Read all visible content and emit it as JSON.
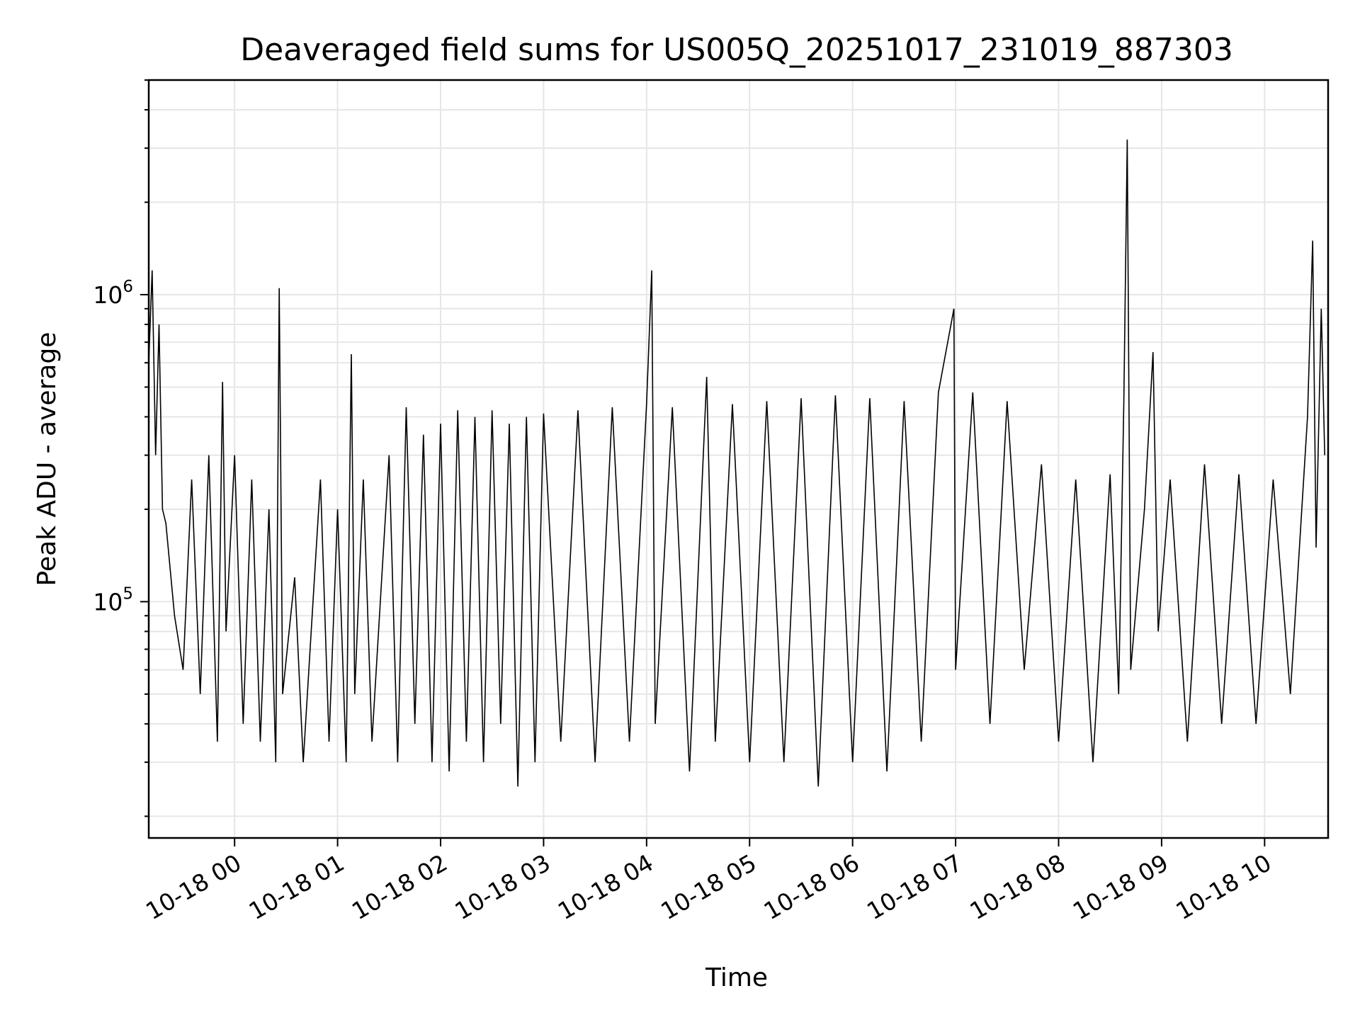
{
  "chart_data": {
    "type": "line",
    "title": "Deaveraged field sums for US005Q_20251017_231019_887303",
    "xlabel": "Time",
    "ylabel": "Peak ADU - average",
    "yscale": "log",
    "ylim": [
      17000,
      5000000
    ],
    "xlim": [
      "2025-10-17 23:10",
      "2025-10-18 10:37"
    ],
    "grid": true,
    "line_color": "#000000",
    "x_ticks": [
      {
        "t": "2025-10-18 00:00",
        "label": "10-18 00"
      },
      {
        "t": "2025-10-18 01:00",
        "label": "10-18 01"
      },
      {
        "t": "2025-10-18 02:00",
        "label": "10-18 02"
      },
      {
        "t": "2025-10-18 03:00",
        "label": "10-18 03"
      },
      {
        "t": "2025-10-18 04:00",
        "label": "10-18 04"
      },
      {
        "t": "2025-10-18 05:00",
        "label": "10-18 05"
      },
      {
        "t": "2025-10-18 06:00",
        "label": "10-18 06"
      },
      {
        "t": "2025-10-18 07:00",
        "label": "10-18 07"
      },
      {
        "t": "2025-10-18 08:00",
        "label": "10-18 08"
      },
      {
        "t": "2025-10-18 09:00",
        "label": "10-18 09"
      },
      {
        "t": "2025-10-18 10:00",
        "label": "10-18 10"
      }
    ],
    "y_ticks": [
      {
        "value": 100000,
        "base": "10",
        "exp": "5"
      },
      {
        "value": 1000000,
        "base": "10",
        "exp": "6"
      }
    ],
    "series": [
      {
        "points": [
          [
            "2025-10-17 23:10",
            600000
          ],
          [
            "2025-10-17 23:12",
            1200000
          ],
          [
            "2025-10-17 23:14",
            300000
          ],
          [
            "2025-10-17 23:16",
            800000
          ],
          [
            "2025-10-17 23:18",
            200000
          ],
          [
            "2025-10-17 23:20",
            180000
          ],
          [
            "2025-10-17 23:25",
            90000
          ],
          [
            "2025-10-17 23:30",
            60000
          ],
          [
            "2025-10-17 23:35",
            250000
          ],
          [
            "2025-10-17 23:40",
            50000
          ],
          [
            "2025-10-17 23:45",
            300000
          ],
          [
            "2025-10-17 23:50",
            35000
          ],
          [
            "2025-10-17 23:53",
            520000
          ],
          [
            "2025-10-17 23:55",
            80000
          ],
          [
            "2025-10-18 00:00",
            300000
          ],
          [
            "2025-10-18 00:05",
            40000
          ],
          [
            "2025-10-18 00:10",
            250000
          ],
          [
            "2025-10-18 00:15",
            35000
          ],
          [
            "2025-10-18 00:20",
            200000
          ],
          [
            "2025-10-18 00:24",
            30000
          ],
          [
            "2025-10-18 00:26",
            1050000
          ],
          [
            "2025-10-18 00:28",
            50000
          ],
          [
            "2025-10-18 00:35",
            120000
          ],
          [
            "2025-10-18 00:40",
            30000
          ],
          [
            "2025-10-18 00:50",
            250000
          ],
          [
            "2025-10-18 00:55",
            35000
          ],
          [
            "2025-10-18 01:00",
            200000
          ],
          [
            "2025-10-18 01:05",
            30000
          ],
          [
            "2025-10-18 01:08",
            640000
          ],
          [
            "2025-10-18 01:10",
            50000
          ],
          [
            "2025-10-18 01:15",
            250000
          ],
          [
            "2025-10-18 01:20",
            35000
          ],
          [
            "2025-10-18 01:30",
            300000
          ],
          [
            "2025-10-18 01:35",
            30000
          ],
          [
            "2025-10-18 01:40",
            430000
          ],
          [
            "2025-10-18 01:45",
            40000
          ],
          [
            "2025-10-18 01:50",
            350000
          ],
          [
            "2025-10-18 01:55",
            30000
          ],
          [
            "2025-10-18 02:00",
            380000
          ],
          [
            "2025-10-18 02:05",
            28000
          ],
          [
            "2025-10-18 02:10",
            420000
          ],
          [
            "2025-10-18 02:15",
            35000
          ],
          [
            "2025-10-18 02:20",
            400000
          ],
          [
            "2025-10-18 02:25",
            30000
          ],
          [
            "2025-10-18 02:30",
            420000
          ],
          [
            "2025-10-18 02:35",
            40000
          ],
          [
            "2025-10-18 02:40",
            380000
          ],
          [
            "2025-10-18 02:45",
            25000
          ],
          [
            "2025-10-18 02:50",
            400000
          ],
          [
            "2025-10-18 02:55",
            30000
          ],
          [
            "2025-10-18 03:00",
            410000
          ],
          [
            "2025-10-18 03:10",
            35000
          ],
          [
            "2025-10-18 03:20",
            420000
          ],
          [
            "2025-10-18 03:30",
            30000
          ],
          [
            "2025-10-18 03:40",
            430000
          ],
          [
            "2025-10-18 03:50",
            35000
          ],
          [
            "2025-10-18 04:00",
            440000
          ],
          [
            "2025-10-18 04:03",
            1200000
          ],
          [
            "2025-10-18 04:05",
            40000
          ],
          [
            "2025-10-18 04:15",
            430000
          ],
          [
            "2025-10-18 04:25",
            28000
          ],
          [
            "2025-10-18 04:35",
            540000
          ],
          [
            "2025-10-18 04:40",
            35000
          ],
          [
            "2025-10-18 04:50",
            440000
          ],
          [
            "2025-10-18 05:00",
            30000
          ],
          [
            "2025-10-18 05:10",
            450000
          ],
          [
            "2025-10-18 05:20",
            30000
          ],
          [
            "2025-10-18 05:30",
            460000
          ],
          [
            "2025-10-18 05:40",
            25000
          ],
          [
            "2025-10-18 05:50",
            470000
          ],
          [
            "2025-10-18 06:00",
            30000
          ],
          [
            "2025-10-18 06:10",
            460000
          ],
          [
            "2025-10-18 06:20",
            28000
          ],
          [
            "2025-10-18 06:30",
            450000
          ],
          [
            "2025-10-18 06:40",
            35000
          ],
          [
            "2025-10-18 06:50",
            480000
          ],
          [
            "2025-10-18 06:59",
            900000
          ],
          [
            "2025-10-18 07:00",
            60000
          ],
          [
            "2025-10-18 07:10",
            480000
          ],
          [
            "2025-10-18 07:20",
            40000
          ],
          [
            "2025-10-18 07:30",
            450000
          ],
          [
            "2025-10-18 07:40",
            60000
          ],
          [
            "2025-10-18 07:50",
            280000
          ],
          [
            "2025-10-18 08:00",
            35000
          ],
          [
            "2025-10-18 08:10",
            250000
          ],
          [
            "2025-10-18 08:20",
            30000
          ],
          [
            "2025-10-18 08:30",
            260000
          ],
          [
            "2025-10-18 08:35",
            50000
          ],
          [
            "2025-10-18 08:38",
            450000
          ],
          [
            "2025-10-18 08:40",
            3200000
          ],
          [
            "2025-10-18 08:42",
            60000
          ],
          [
            "2025-10-18 08:50",
            200000
          ],
          [
            "2025-10-18 08:55",
            650000
          ],
          [
            "2025-10-18 08:58",
            80000
          ],
          [
            "2025-10-18 09:05",
            250000
          ],
          [
            "2025-10-18 09:15",
            35000
          ],
          [
            "2025-10-18 09:25",
            280000
          ],
          [
            "2025-10-18 09:35",
            40000
          ],
          [
            "2025-10-18 09:45",
            260000
          ],
          [
            "2025-10-18 09:55",
            40000
          ],
          [
            "2025-10-18 10:05",
            250000
          ],
          [
            "2025-10-18 10:15",
            50000
          ],
          [
            "2025-10-18 10:25",
            400000
          ],
          [
            "2025-10-18 10:28",
            1500000
          ],
          [
            "2025-10-18 10:30",
            150000
          ],
          [
            "2025-10-18 10:33",
            900000
          ],
          [
            "2025-10-18 10:35",
            300000
          ]
        ]
      }
    ]
  }
}
